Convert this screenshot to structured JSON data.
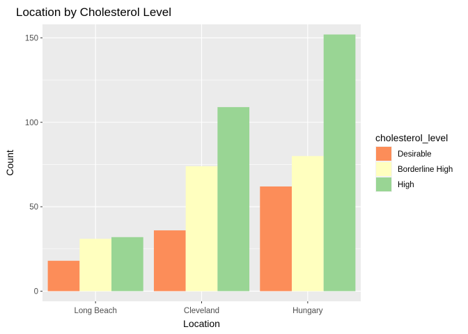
{
  "chart_data": {
    "type": "bar",
    "title": "Location by Cholesterol Level",
    "xlabel": "Location",
    "ylabel": "Count",
    "categories": [
      "Long Beach",
      "Cleveland",
      "Hungary"
    ],
    "series": [
      {
        "name": "Desirable",
        "values": [
          18,
          36,
          62
        ],
        "color": "#FC8D59"
      },
      {
        "name": "Borderline High",
        "values": [
          31,
          74,
          80
        ],
        "color": "#FFFFBF"
      },
      {
        "name": "High",
        "values": [
          32,
          109,
          152
        ],
        "color": "#99D594"
      }
    ],
    "ylim": [
      -6,
      158
    ],
    "yticks": [
      0,
      50,
      100,
      150
    ],
    "grid": true,
    "legend": {
      "title": "cholesterol_level",
      "placement": "right"
    },
    "panel_background": "#EBEBEB",
    "grid_color": "#FFFFFF"
  }
}
